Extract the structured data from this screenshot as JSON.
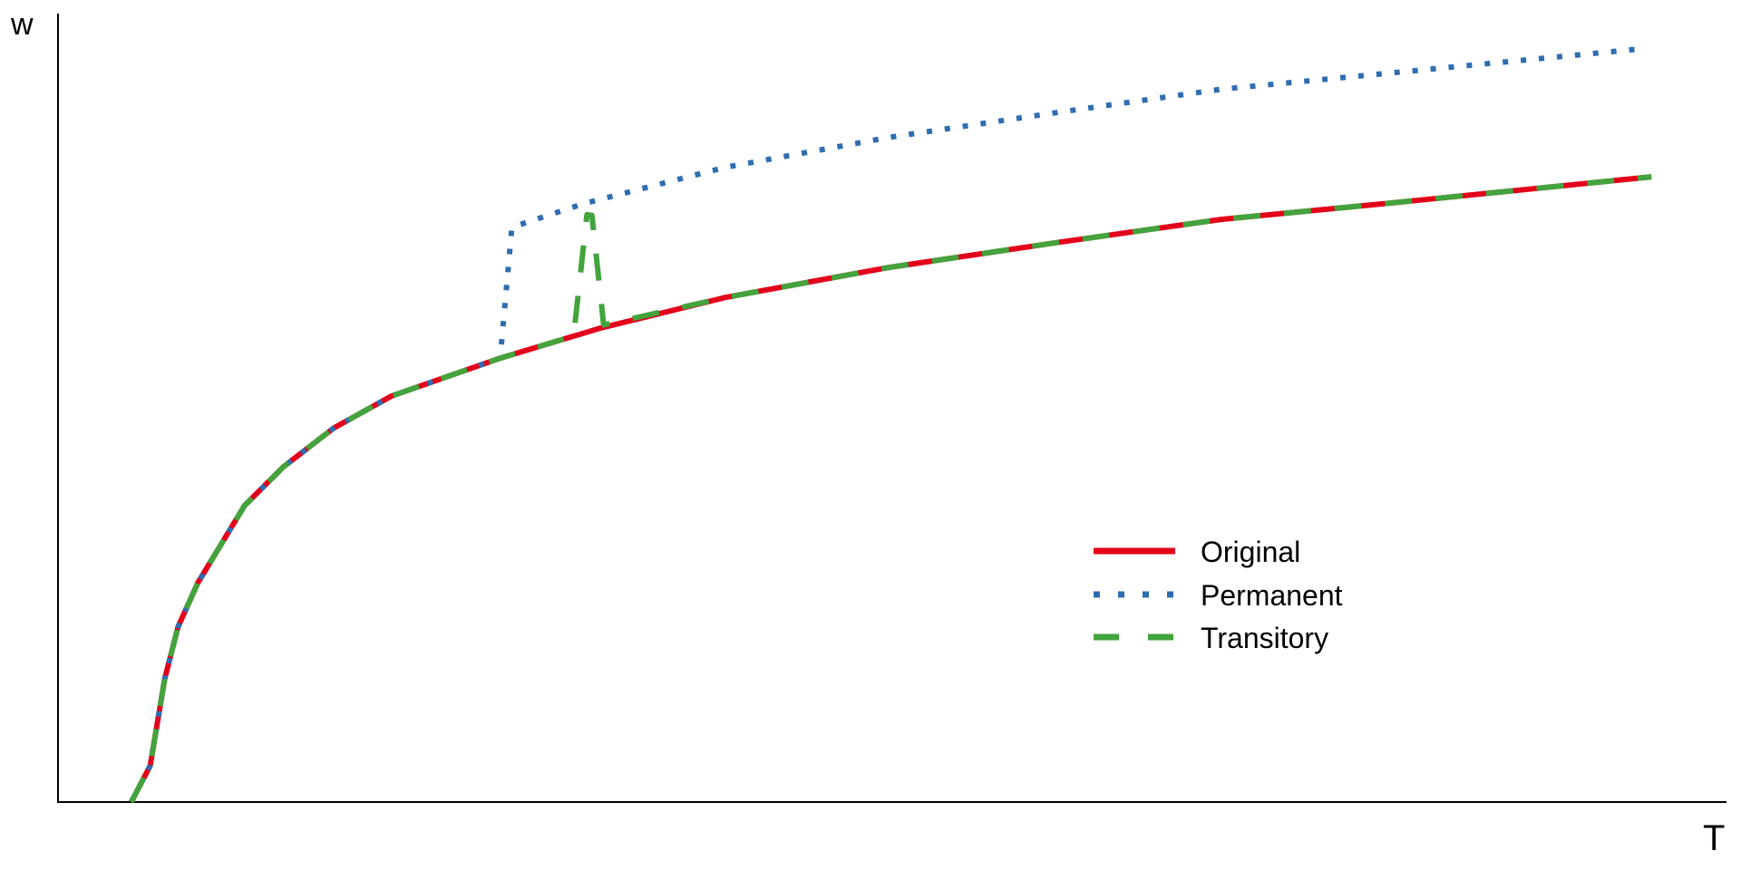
{
  "chart_data": {
    "type": "line",
    "title": "",
    "xlabel": "T",
    "ylabel": "w",
    "xlim": [
      0,
      100
    ],
    "ylim": [
      0,
      100
    ],
    "grid": false,
    "ticks": false,
    "legend_position": "bottom-right",
    "series": [
      {
        "name": "Original",
        "color": "#E3001B",
        "style": "solid",
        "points": [
          [
            4.39,
            0
          ],
          [
            5.52,
            4.6
          ],
          [
            6.39,
            15.6
          ],
          [
            7.19,
            22.2
          ],
          [
            8.38,
            27.8
          ],
          [
            11.18,
            37.6
          ],
          [
            13.5,
            42.5
          ],
          [
            16.5,
            47.4
          ],
          [
            20,
            51.5
          ],
          [
            26.5,
            56.3
          ],
          [
            32.5,
            60.1
          ],
          [
            40,
            64
          ],
          [
            49.8,
            67.8
          ],
          [
            60,
            71
          ],
          [
            69.7,
            73.9
          ],
          [
            80,
            76
          ],
          [
            95.5,
            79.3
          ]
        ]
      },
      {
        "name": "Permanent",
        "color": "#2F6DB0",
        "style": "dotted",
        "points": [
          [
            4.39,
            0
          ],
          [
            5.52,
            4.6
          ],
          [
            6.39,
            15.6
          ],
          [
            7.19,
            22.2
          ],
          [
            8.38,
            27.8
          ],
          [
            11.18,
            37.6
          ],
          [
            13.5,
            42.5
          ],
          [
            16.5,
            47.4
          ],
          [
            20,
            51.5
          ],
          [
            26.5,
            56.3
          ],
          [
            27.2,
            72.9
          ],
          [
            31.5,
            75.9
          ],
          [
            40,
            80.5
          ],
          [
            49.8,
            84.3
          ],
          [
            60,
            87.5
          ],
          [
            69.7,
            90.4
          ],
          [
            80,
            92.5
          ],
          [
            94.7,
            95.5
          ]
        ]
      },
      {
        "name": "Transitory",
        "color": "#43A33D",
        "style": "dashed",
        "points": [
          [
            4.39,
            0
          ],
          [
            5.52,
            4.6
          ],
          [
            6.39,
            15.6
          ],
          [
            7.19,
            22.2
          ],
          [
            8.38,
            27.8
          ],
          [
            11.18,
            37.6
          ],
          [
            13.5,
            42.5
          ],
          [
            16.5,
            47.4
          ],
          [
            20,
            51.5
          ],
          [
            26.5,
            56.3
          ],
          [
            30.9,
            59.1
          ],
          [
            31.7,
            74.5
          ],
          [
            32.0,
            74.4
          ],
          [
            32.7,
            60.5
          ],
          [
            40,
            64
          ],
          [
            49.8,
            67.8
          ],
          [
            60,
            71
          ],
          [
            69.7,
            73.9
          ],
          [
            80,
            76
          ],
          [
            95.5,
            79.3
          ]
        ]
      }
    ]
  }
}
